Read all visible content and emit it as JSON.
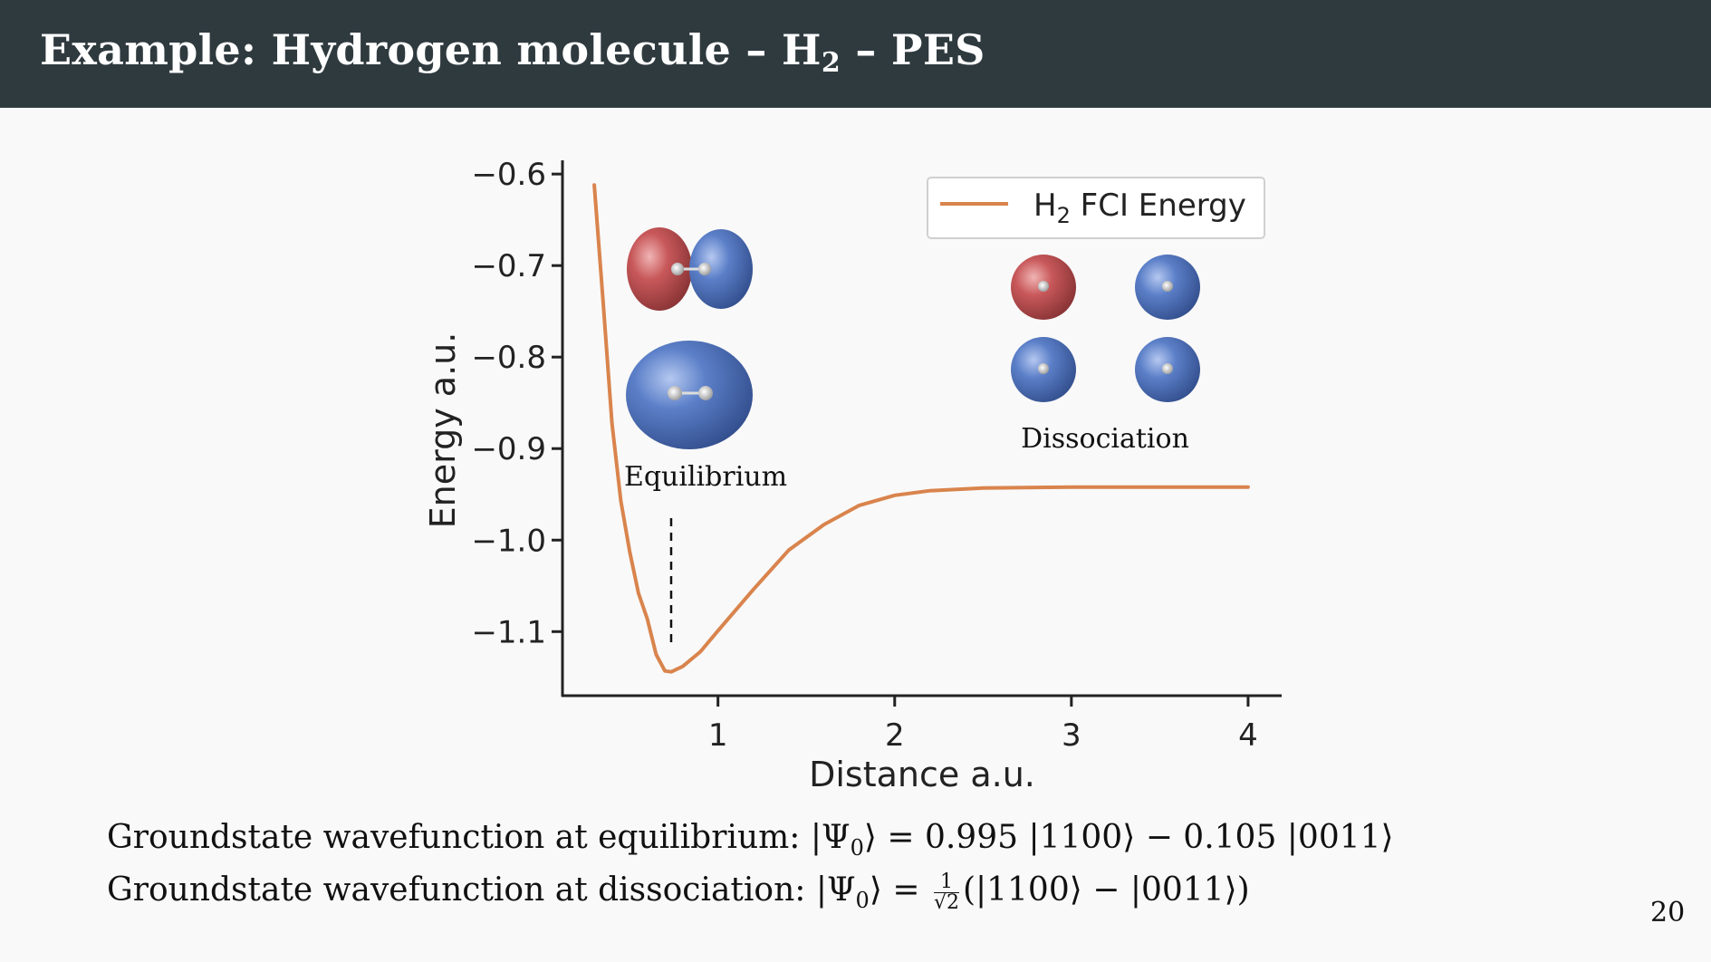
{
  "slide": {
    "title_prefix": "Example:  Hydrogen molecule – H",
    "title_sub": "2",
    "title_suffix": " – PES",
    "page_number": "20"
  },
  "colors": {
    "line": "#d9844d",
    "title_bg": "#2f3a3f",
    "orbital_red": "#c8585a",
    "orbital_blue": "#5b7fc8"
  },
  "annotations": {
    "equilibrium": "Equilibrium",
    "dissociation": "Dissociation"
  },
  "bottom": {
    "line1_text": "Groundstate wavefunction at equilibrium: ",
    "line1_math": "= 0.995 |1100⟩ − 0.105 |0011⟩",
    "line2_text": "Groundstate wavefunction at dissociation: ",
    "psi_left": "|Ψ",
    "psi_sub": "0",
    "psi_right": "⟩ ",
    "line2_eq": "= ",
    "frac_num": "1",
    "frac_den": "√2",
    "line2_math": "(|1100⟩ − |0011⟩)"
  },
  "chart_data": {
    "type": "line",
    "xlabel": "Distance a.u.",
    "ylabel": "Energy a.u.",
    "xticks": [
      1,
      2,
      3,
      4
    ],
    "yticks": [
      -0.6,
      -0.7,
      -0.8,
      -0.9,
      -1.0,
      -1.1
    ],
    "ytick_labels": [
      "−0.6",
      "−0.7",
      "−0.8",
      "−0.9",
      "−1.0",
      "−1.1"
    ],
    "xlim": [
      0.12,
      4.19
    ],
    "ylim": [
      -1.17,
      -0.585
    ],
    "legend_position": "top-right",
    "equilibrium_distance": 0.735,
    "series": [
      {
        "name": "H₂ FCI Energy",
        "name_main": "H",
        "name_sub": "2",
        "name_rest": " FCI Energy",
        "x": [
          0.3,
          0.35,
          0.4,
          0.45,
          0.5,
          0.55,
          0.6,
          0.65,
          0.7,
          0.735,
          0.8,
          0.9,
          1.0,
          1.2,
          1.4,
          1.6,
          1.8,
          2.0,
          2.2,
          2.5,
          3.0,
          3.5,
          4.0
        ],
        "y": [
          -0.612,
          -0.74,
          -0.872,
          -0.957,
          -1.012,
          -1.058,
          -1.086,
          -1.125,
          -1.143,
          -1.144,
          -1.138,
          -1.122,
          -1.099,
          -1.054,
          -1.011,
          -0.983,
          -0.962,
          -0.951,
          -0.946,
          -0.943,
          -0.942,
          -0.942,
          -0.942
        ]
      }
    ]
  }
}
